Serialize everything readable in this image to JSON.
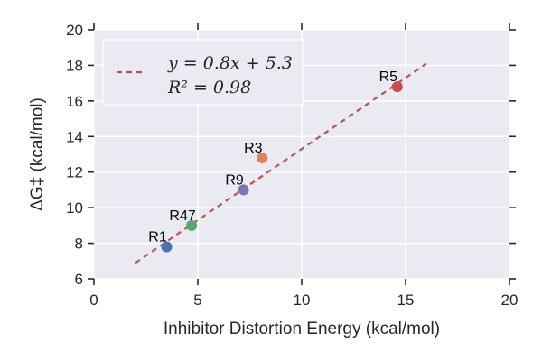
{
  "chart_data": {
    "type": "scatter",
    "xlabel": "Inhibitor Distortion Energy (kcal/mol)",
    "ylabel": "ΔG‡ (kcal/mol)",
    "xlim": [
      0,
      20
    ],
    "ylim": [
      6,
      20
    ],
    "xticks": [
      "0",
      "5",
      "10",
      "15",
      "20"
    ],
    "yticks": [
      "6",
      "8",
      "10",
      "12",
      "14",
      "16",
      "18",
      "20"
    ],
    "grid": true,
    "legend_position": "top-left",
    "points": [
      {
        "label": "R1",
        "x": 3.5,
        "y": 7.8,
        "color": "#4c72b0"
      },
      {
        "label": "R47",
        "x": 4.7,
        "y": 9.0,
        "color": "#55a868"
      },
      {
        "label": "R9",
        "x": 7.2,
        "y": 11.0,
        "color": "#8172b2"
      },
      {
        "label": "R3",
        "x": 8.1,
        "y": 12.8,
        "color": "#dd8452"
      },
      {
        "label": "R5",
        "x": 14.6,
        "y": 16.8,
        "color": "#c44e52"
      }
    ],
    "fit_line": {
      "slope": 0.8,
      "intercept": 5.3,
      "x_range": [
        2,
        16
      ],
      "color": "#c44e52",
      "style": "dashed",
      "equation": "y = 0.8x + 5.3",
      "r_squared": "R² = 0.98"
    },
    "background_color": "#eaeaf2",
    "grid_color": "#ffffff"
  }
}
